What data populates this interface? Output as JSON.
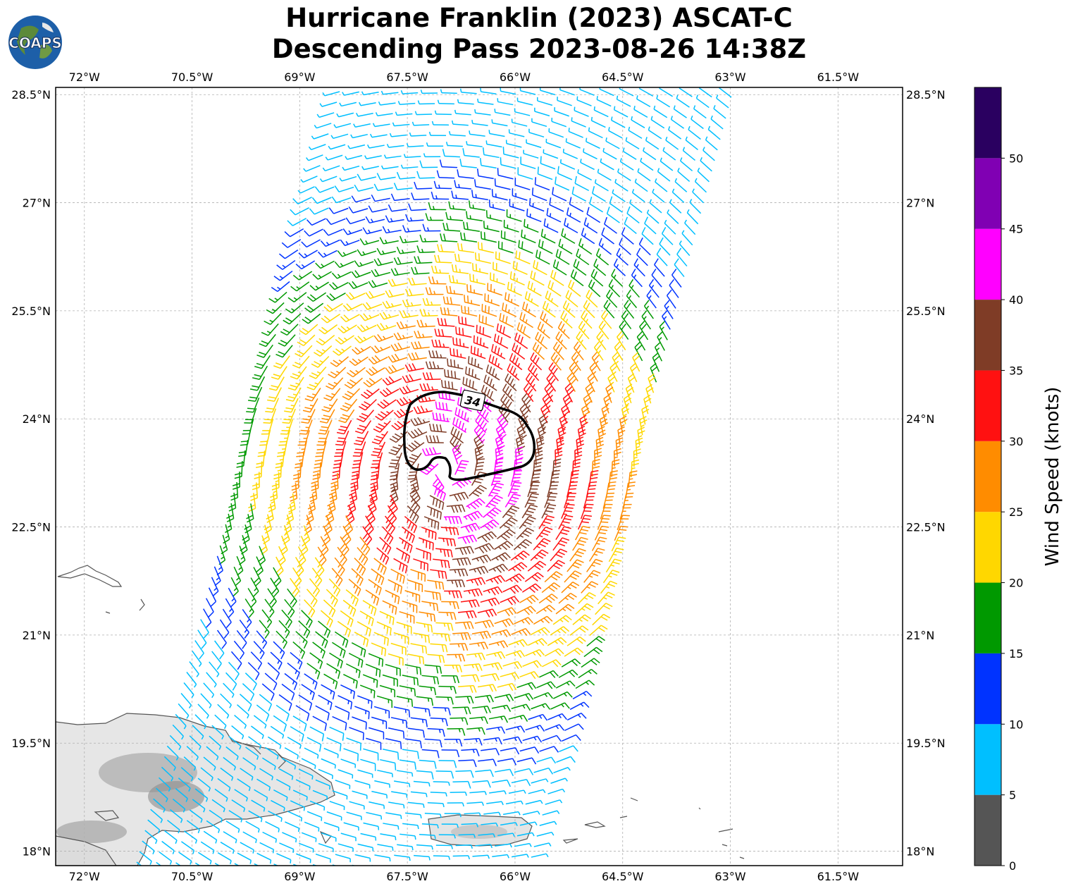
{
  "title": {
    "line1": "Hurricane Franklin (2023) ASCAT-C",
    "line2": "Descending Pass 2023-08-26 14:38Z"
  },
  "logo": {
    "text": "COAPS",
    "icon": "globe-icon"
  },
  "map": {
    "lon_range": [
      -72.4,
      -60.6
    ],
    "lat_range": [
      17.8,
      28.6
    ],
    "lon_ticks": [
      "72°W",
      "70.5°W",
      "69°W",
      "67.5°W",
      "66°W",
      "64.5°W",
      "63°W",
      "61.5°W"
    ],
    "lon_tick_values": [
      -72,
      -70.5,
      -69,
      -67.5,
      -66,
      -64.5,
      -63,
      -61.5
    ],
    "lat_ticks": [
      "28.5°N",
      "27°N",
      "25.5°N",
      "24°N",
      "22.5°N",
      "21°N",
      "19.5°N",
      "18°N"
    ],
    "lat_tick_values": [
      28.5,
      27,
      25.5,
      24,
      22.5,
      21,
      19.5,
      18
    ],
    "gridlines": true,
    "storm_center": {
      "lon": -67.0,
      "lat": 23.3
    },
    "contour_label": "34"
  },
  "colorbar": {
    "label": "Wind Speed (knots)",
    "ticks": [
      "0",
      "5",
      "10",
      "15",
      "20",
      "25",
      "30",
      "35",
      "40",
      "45",
      "50"
    ],
    "colors": [
      "#555555",
      "#00bfff",
      "#0033ff",
      "#009900",
      "#ffd700",
      "#ff8c00",
      "#ff1111",
      "#7f3c26",
      "#ff00ff",
      "#8000b3",
      "#2a0060"
    ],
    "range": [
      0,
      55
    ]
  }
}
